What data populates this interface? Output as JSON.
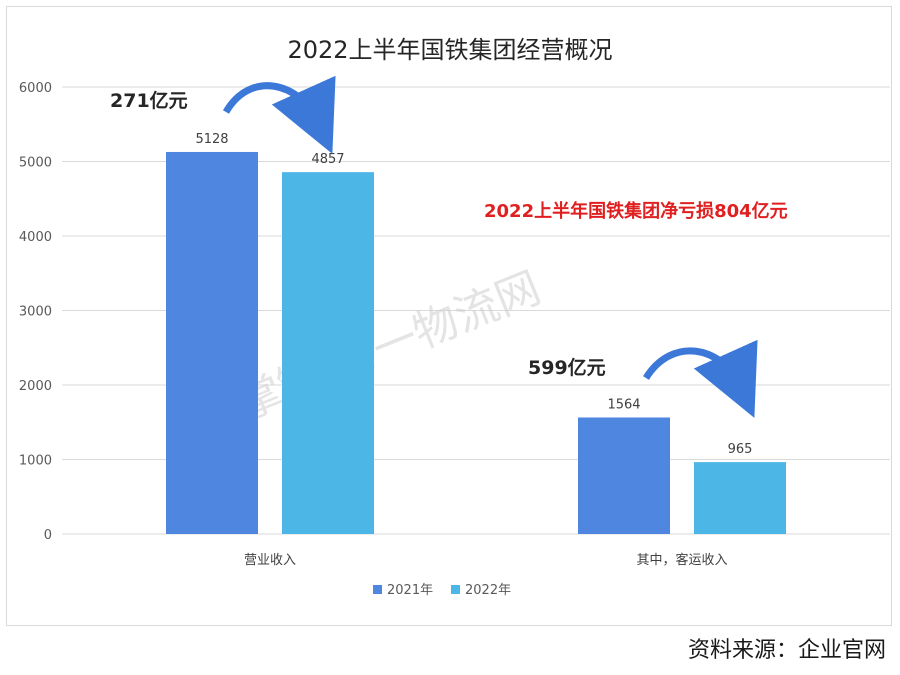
{
  "chart_data": {
    "type": "bar",
    "title": "2022上半年国铁集团经营概况",
    "categories": [
      "营业收入",
      "其中，客运收入"
    ],
    "series": [
      {
        "name": "2021年",
        "values": [
          5128,
          1564
        ],
        "color": "#4f86e0"
      },
      {
        "name": "2022年",
        "values": [
          4857,
          965
        ],
        "color": "#4cb6e6"
      }
    ],
    "ylim": [
      0,
      6000
    ],
    "yticks": [
      0,
      1000,
      2000,
      3000,
      4000,
      5000,
      6000
    ],
    "grid": true,
    "legend": "bottom-center",
    "annotations": [
      {
        "text": "271亿元",
        "category": "营业收入"
      },
      {
        "text": "599亿元",
        "category": "其中，客运收入"
      },
      {
        "text": "2022上半年国铁集团净亏损804亿元",
        "color": "#e02020"
      }
    ]
  },
  "watermark": "掌链·第一物流网",
  "source": "资料来源：企业官网"
}
